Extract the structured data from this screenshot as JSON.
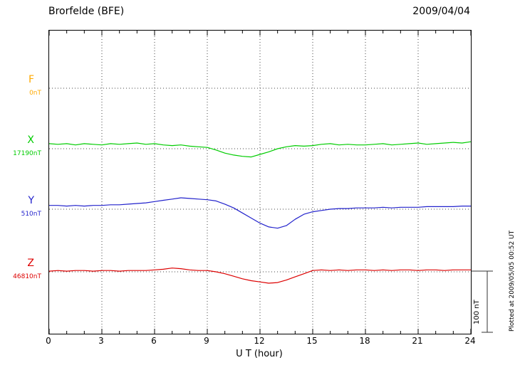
{
  "chart_data": {
    "type": "line",
    "title": "Brorfelde (BFE)",
    "date": "2009/04/04",
    "xlabel": "U T (hour)",
    "xlim": [
      0,
      24
    ],
    "x_ticks": [
      0,
      3,
      6,
      9,
      12,
      15,
      18,
      21,
      24
    ],
    "x_minor_tick_step": 1,
    "x_start_hour": 0,
    "x_step_hours": 0.5,
    "grid": "dotted vertical lines every 3 hours, dotted horizontal baseline per component",
    "scale_bar": {
      "label": "100 nT",
      "value_nT": 100
    },
    "plotted_at": "Plotted at 2009/05/05 00:52 UT",
    "colors": {
      "frame": "#000000",
      "grid": "#444444",
      "background": "#ffffff"
    },
    "series": [
      {
        "name": "F",
        "baseline_label": "0nT",
        "color": "#FFAA00",
        "values_nT": []
      },
      {
        "name": "X",
        "baseline_label": "17190nT",
        "color": "#00CC00",
        "values_nT": [
          8,
          7,
          8,
          6,
          8,
          7,
          6,
          8,
          7,
          8,
          9,
          7,
          8,
          6,
          5,
          6,
          4,
          3,
          2,
          -2,
          -7,
          -10,
          -12,
          -13,
          -9,
          -5,
          0,
          3,
          5,
          4,
          5,
          7,
          8,
          6,
          7,
          6,
          6,
          7,
          8,
          6,
          7,
          8,
          9,
          7,
          8,
          9,
          10,
          9,
          11
        ]
      },
      {
        "name": "Y",
        "baseline_label": "510nT",
        "color": "#2222CC",
        "values_nT": [
          6,
          6,
          5,
          6,
          5,
          6,
          6,
          7,
          7,
          8,
          9,
          10,
          12,
          14,
          16,
          18,
          17,
          16,
          15,
          13,
          8,
          2,
          -6,
          -14,
          -22,
          -28,
          -30,
          -26,
          -16,
          -8,
          -4,
          -2,
          0,
          1,
          1,
          2,
          2,
          2,
          3,
          2,
          3,
          3,
          3,
          4,
          4,
          4,
          4,
          5,
          5
        ]
      },
      {
        "name": "Z",
        "baseline_label": "46810nT",
        "color": "#DD0000",
        "values_nT": [
          1,
          2,
          1,
          2,
          2,
          1,
          2,
          2,
          1,
          2,
          2,
          2,
          3,
          4,
          6,
          5,
          3,
          2,
          2,
          0,
          -3,
          -7,
          -11,
          -14,
          -16,
          -18,
          -17,
          -13,
          -8,
          -3,
          2,
          3,
          2,
          3,
          2,
          3,
          3,
          2,
          3,
          2,
          3,
          3,
          2,
          3,
          3,
          2,
          3,
          3,
          3
        ]
      }
    ]
  }
}
